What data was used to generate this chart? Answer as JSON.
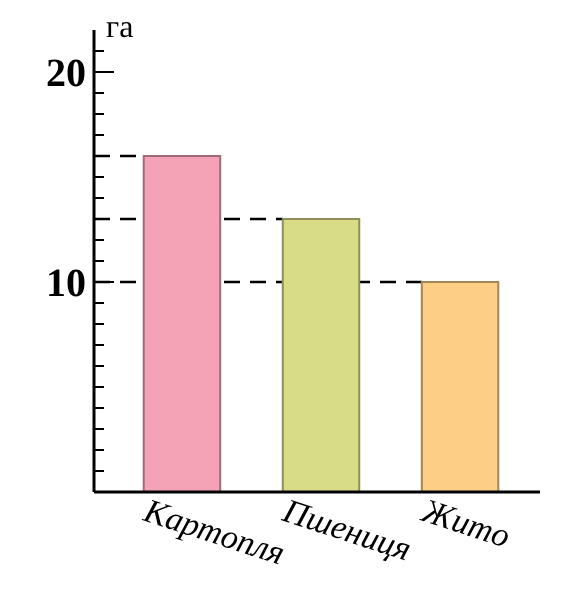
{
  "chart_data": {
    "type": "bar",
    "ylabel": "га",
    "categories": [
      "Картопля",
      "Пшениця",
      "Жито"
    ],
    "values": [
      16,
      13,
      10
    ],
    "colors": [
      "#f4a3b6",
      "#d9dc86",
      "#fcce86"
    ],
    "ylim": [
      0,
      22
    ],
    "yticks": [
      {
        "value": 1,
        "label": null
      },
      {
        "value": 2,
        "label": null
      },
      {
        "value": 3,
        "label": null
      },
      {
        "value": 4,
        "label": null
      },
      {
        "value": 5,
        "label": null
      },
      {
        "value": 6,
        "label": null
      },
      {
        "value": 7,
        "label": null
      },
      {
        "value": 8,
        "label": null
      },
      {
        "value": 9,
        "label": null
      },
      10,
      {
        "value": 11,
        "label": null
      },
      {
        "value": 12,
        "label": null
      },
      {
        "value": 13,
        "label": null
      },
      {
        "value": 14,
        "label": null
      },
      {
        "value": 15,
        "label": null
      },
      {
        "value": 16,
        "label": null
      },
      {
        "value": 17,
        "label": null
      },
      {
        "value": 18,
        "label": null
      },
      {
        "value": 19,
        "label": null
      },
      20,
      {
        "value": 21,
        "label": null
      }
    ],
    "ref_lines": [
      {
        "axis": "y",
        "value": 16,
        "line_style": "dashed"
      },
      {
        "axis": "y",
        "value": 13,
        "line_style": "dashed"
      },
      {
        "axis": "y",
        "value": 10,
        "line_style": "dashed"
      }
    ],
    "grid": false
  }
}
